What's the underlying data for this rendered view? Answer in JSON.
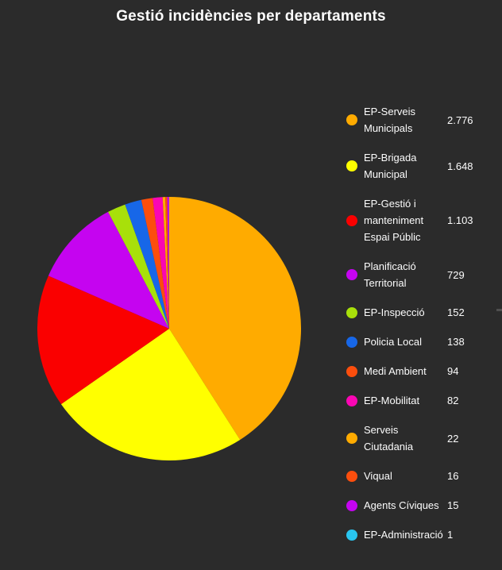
{
  "page": {
    "background_color": "#2B2B2B",
    "text_color": "#FCFCFC"
  },
  "chart_data": {
    "type": "pie",
    "title": "Gestió incidències per departaments",
    "legend_position": "right",
    "start_angle_deg": -90,
    "direction": "clockwise",
    "total": 6776,
    "slices": [
      {
        "label": "EP-Serveis Municipals",
        "legend_label_lines": [
          "EP-Serveis",
          "Municipals"
        ],
        "value": 2776,
        "display_value": "2.776",
        "color": "#FFAB00"
      },
      {
        "label": "EP-Brigada Municipal",
        "legend_label_lines": [
          "EP-Brigada",
          "Municipal"
        ],
        "value": 1648,
        "display_value": "1.648",
        "color": "#FFFF00"
      },
      {
        "label": "EP-Gestió i manteniment Espai Públic",
        "legend_label_lines": [
          "EP-Gestió i",
          "manteniment",
          "Espai Públic"
        ],
        "value": 1103,
        "display_value": "1.103",
        "color": "#FA0000"
      },
      {
        "label": "Planificació Territorial",
        "legend_label_lines": [
          "Planificació",
          "Territorial"
        ],
        "value": 729,
        "display_value": "729",
        "color": "#C504F0"
      },
      {
        "label": "EP-Inspecció",
        "legend_label_lines": [
          "EP-Inspecció"
        ],
        "value": 152,
        "display_value": "152",
        "color": "#A8E00A"
      },
      {
        "label": "Policia Local",
        "legend_label_lines": [
          "Policia Local"
        ],
        "value": 138,
        "display_value": "138",
        "color": "#1767E8"
      },
      {
        "label": "Medi Ambient",
        "legend_label_lines": [
          "Medi Ambient"
        ],
        "value": 94,
        "display_value": "94",
        "color": "#FC4E0D"
      },
      {
        "label": "EP-Mobilitat",
        "legend_label_lines": [
          "EP-Mobilitat"
        ],
        "value": 82,
        "display_value": "82",
        "color": "#FA06B4"
      },
      {
        "label": "Serveis Ciutadania",
        "legend_label_lines": [
          "Serveis",
          "Ciutadania"
        ],
        "value": 22,
        "display_value": "22",
        "color": "#FFAB00"
      },
      {
        "label": "Viqual",
        "legend_label_lines": [
          "Viqual"
        ],
        "value": 16,
        "display_value": "16",
        "color": "#FC4E0D"
      },
      {
        "label": "Agents Cíviques",
        "legend_label_lines": [
          "Agents Cíviques"
        ],
        "value": 15,
        "display_value": "15",
        "color": "#C504F0"
      },
      {
        "label": "EP-Administració",
        "legend_label_lines": [
          "EP-Administració"
        ],
        "value": 1,
        "display_value": "1",
        "color": "#29C5F0"
      }
    ]
  }
}
